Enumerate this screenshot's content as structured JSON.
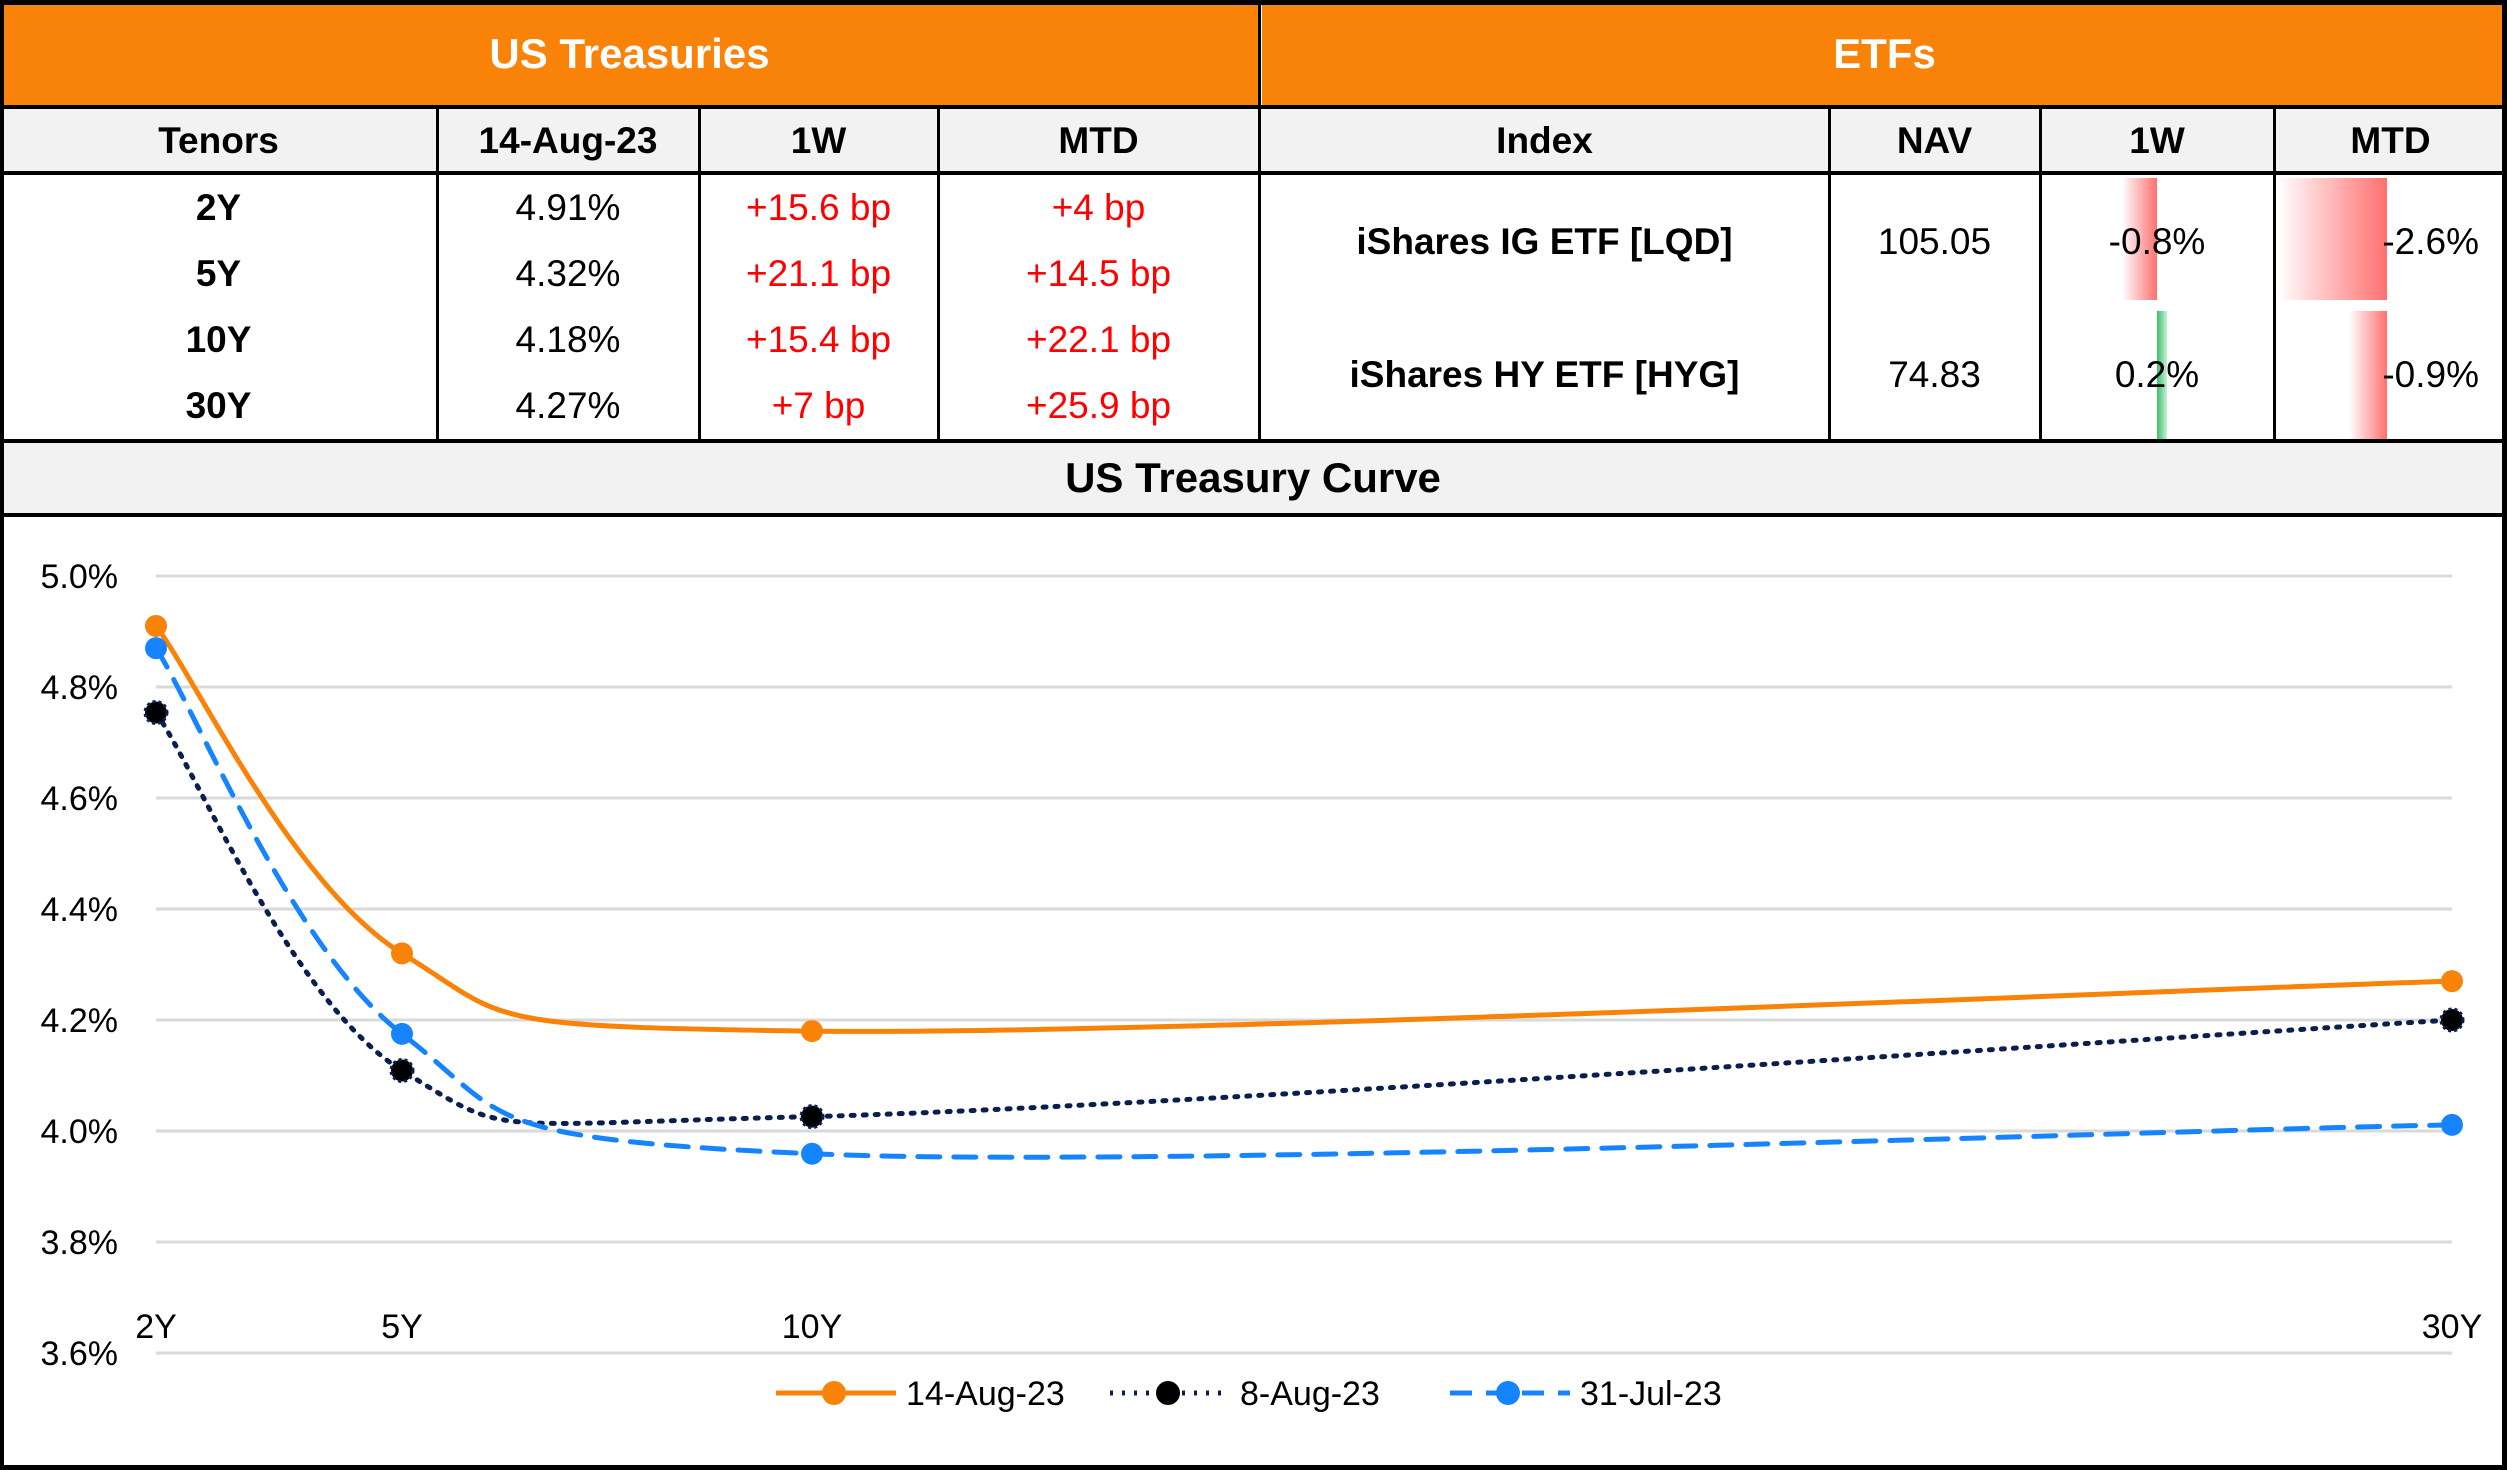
{
  "treasuries": {
    "title": "US Treasuries",
    "headers": [
      "Tenors",
      "14-Aug-23",
      "1W",
      "MTD"
    ],
    "rows": [
      {
        "tenor": "2Y",
        "yield": "4.91%",
        "w1": "+15.6 bp",
        "mtd": "+4 bp"
      },
      {
        "tenor": "5Y",
        "yield": "4.32%",
        "w1": "+21.1 bp",
        "mtd": "+14.5 bp"
      },
      {
        "tenor": "10Y",
        "yield": "4.18%",
        "w1": "+15.4 bp",
        "mtd": "+22.1 bp"
      },
      {
        "tenor": "30Y",
        "yield": "4.27%",
        "w1": "+7 bp",
        "mtd": "+25.9 bp"
      }
    ]
  },
  "etfs": {
    "title": "ETFs",
    "headers": [
      "Index",
      "NAV",
      "1W",
      "MTD"
    ],
    "rows": [
      {
        "index": "iShares IG ETF [LQD]",
        "nav": "105.05",
        "w1": "-0.8%",
        "mtd": "-2.6%",
        "w1_value": -0.8,
        "mtd_value": -2.6
      },
      {
        "index": "iShares HY ETF [HYG]",
        "nav": "74.83",
        "w1": "0.2%",
        "mtd": "-0.9%",
        "w1_value": 0.2,
        "mtd_value": -0.9
      }
    ],
    "bar_colors": {
      "negative": "#FF7070",
      "positive": "#3CBF6A"
    }
  },
  "colors": {
    "header_band": "#F98208",
    "negative_text": "#FF0000"
  },
  "chart_data": {
    "type": "line",
    "title": "US Treasury Curve",
    "x": [
      2,
      5,
      10,
      30
    ],
    "x_tick_labels": [
      "2Y",
      "5Y",
      "10Y",
      "30Y"
    ],
    "y_tick_labels": [
      "3.6%",
      "3.8%",
      "4.0%",
      "4.2%",
      "4.4%",
      "4.6%",
      "4.8%",
      "5.0%"
    ],
    "ylim": [
      3.6,
      5.0
    ],
    "grid": "horizontal",
    "smoothed": true,
    "legend_position": "bottom",
    "series": [
      {
        "name": "14-Aug-23",
        "values": [
          4.91,
          4.32,
          4.18,
          4.27
        ],
        "color": "#F98208",
        "style": "solid"
      },
      {
        "name": "8-Aug-23",
        "values": [
          4.754,
          4.109,
          4.026,
          4.2
        ],
        "color": "#0B1F4F",
        "style": "dotted"
      },
      {
        "name": "31-Jul-23",
        "values": [
          4.87,
          4.175,
          3.959,
          4.011
        ],
        "color": "#1784FF",
        "style": "dashed"
      }
    ]
  }
}
